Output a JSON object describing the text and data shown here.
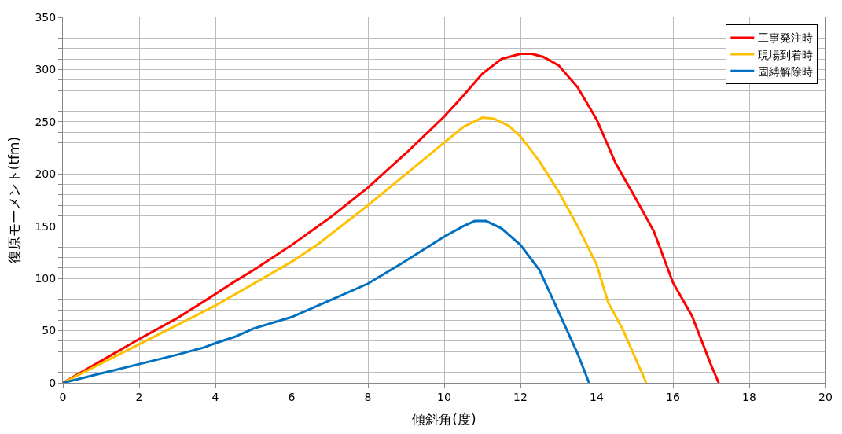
{
  "chart_data": {
    "type": "line",
    "xlabel": "傾斜角(度)",
    "ylabel": "復原モーメント(tfm)",
    "xlim": [
      0,
      20
    ],
    "xticks": [
      0,
      2,
      4,
      6,
      8,
      10,
      12,
      14,
      16,
      18,
      20
    ],
    "ylim": [
      0,
      350
    ],
    "yticks": [
      0,
      {
        "value": 10,
        "label": null
      },
      {
        "value": 20,
        "label": null
      },
      {
        "value": 30,
        "label": null
      },
      {
        "value": 40,
        "label": null
      },
      50,
      {
        "value": 60,
        "label": null
      },
      {
        "value": 70,
        "label": null
      },
      {
        "value": 80,
        "label": null
      },
      {
        "value": 90,
        "label": null
      },
      100,
      {
        "value": 110,
        "label": null
      },
      {
        "value": 120,
        "label": null
      },
      {
        "value": 130,
        "label": null
      },
      {
        "value": 140,
        "label": null
      },
      150,
      {
        "value": 160,
        "label": null
      },
      {
        "value": 170,
        "label": null
      },
      {
        "value": 180,
        "label": null
      },
      {
        "value": 190,
        "label": null
      },
      200,
      {
        "value": 210,
        "label": null
      },
      {
        "value": 220,
        "label": null
      },
      {
        "value": 230,
        "label": null
      },
      {
        "value": 240,
        "label": null
      },
      250,
      {
        "value": 260,
        "label": null
      },
      {
        "value": 270,
        "label": null
      },
      {
        "value": 280,
        "label": null
      },
      {
        "value": 290,
        "label": null
      },
      300,
      {
        "value": 310,
        "label": null
      },
      {
        "value": 320,
        "label": null
      },
      {
        "value": 330,
        "label": null
      },
      {
        "value": 340,
        "label": null
      },
      350
    ],
    "grid": true,
    "legend": "top right",
    "marker": "none",
    "line_style": "solid",
    "series": [
      {
        "name": "工事発注時",
        "color": "#ff0000",
        "x": [
          0,
          1,
          2,
          3,
          3.7,
          4,
          4.5,
          5,
          6,
          7,
          8,
          9,
          10,
          10.5,
          11,
          11.5,
          12,
          12.3,
          12.6,
          13,
          13.5,
          14,
          14.5,
          15,
          15.5,
          16,
          16.5,
          17,
          17.2
        ],
        "values": [
          0,
          21,
          42,
          62,
          78,
          85,
          97,
          108,
          132,
          158,
          187,
          220,
          255,
          275,
          296,
          310,
          315,
          315,
          312,
          304,
          283,
          252,
          210,
          178,
          145,
          96,
          64,
          17,
          0
        ]
      },
      {
        "name": "現場到着時",
        "color": "#ffc000",
        "x": [
          0,
          2,
          4,
          6,
          6.7,
          8,
          9,
          10,
          10.5,
          11,
          11.3,
          11.7,
          12,
          12.5,
          13,
          13.5,
          14,
          14.3,
          14.7,
          15,
          15.3
        ],
        "values": [
          0,
          37,
          74,
          116,
          133,
          170,
          200,
          230,
          245,
          254,
          253,
          246,
          236,
          212,
          183,
          150,
          113,
          77,
          50,
          25,
          0
        ]
      },
      {
        "name": "固縛解除時",
        "color": "#0070c0",
        "x": [
          0,
          1,
          2,
          3,
          3.7,
          4,
          4.5,
          5,
          6,
          7,
          8,
          9,
          10,
          10.5,
          10.8,
          11.1,
          11.5,
          12,
          12.5,
          13,
          13.5,
          13.8
        ],
        "values": [
          0,
          9,
          18,
          27,
          34,
          38,
          44,
          52,
          63,
          79,
          95,
          117,
          140,
          150,
          155,
          155,
          148,
          132,
          108,
          68,
          28,
          0
        ]
      }
    ]
  }
}
